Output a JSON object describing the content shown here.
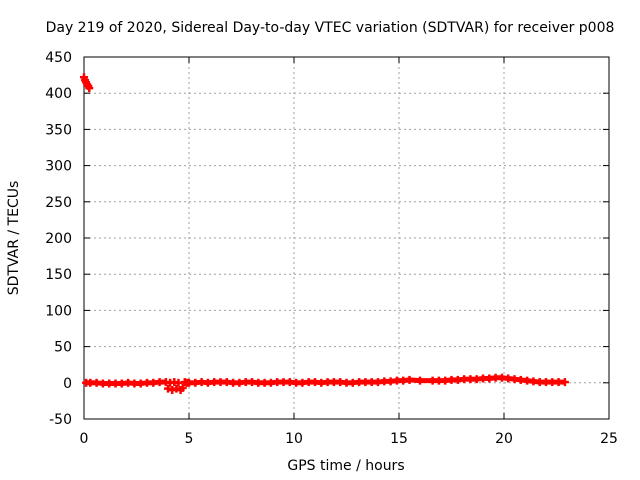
{
  "chart_data": {
    "type": "scatter",
    "title": "Day 219 of 2020, Sidereal Day-to-day VTEC variation (SDTVAR) for receiver p008",
    "xlabel": "GPS time / hours",
    "ylabel": "SDTVAR / TECUs",
    "xlim": [
      0,
      25
    ],
    "ylim": [
      -50,
      450
    ],
    "x_ticks": [
      0,
      5,
      10,
      15,
      20,
      25
    ],
    "y_ticks": [
      -50,
      0,
      50,
      100,
      150,
      200,
      250,
      300,
      350,
      400,
      450
    ],
    "x_tick_labels": [
      "0",
      "5",
      "10",
      "15",
      "20",
      "25"
    ],
    "y_tick_labels": [
      "-50",
      "0",
      "50",
      "100",
      "150",
      "200",
      "250",
      "300",
      "350",
      "400",
      "450"
    ],
    "grid": true,
    "series": [
      {
        "name": "SDTVAR",
        "color": "#ff0000",
        "marker": "plus",
        "x": [
          0.0,
          0.05,
          0.1,
          0.15,
          0.2,
          0.25,
          0.1,
          0.3,
          0.6,
          0.9,
          1.2,
          1.5,
          1.8,
          2.1,
          2.4,
          2.7,
          3.0,
          3.3,
          3.6,
          3.9,
          4.0,
          4.1,
          4.2,
          4.3,
          4.4,
          4.5,
          4.6,
          4.7,
          4.8,
          4.9,
          5.0,
          5.3,
          5.6,
          5.9,
          6.2,
          6.5,
          6.8,
          7.1,
          7.4,
          7.7,
          8.0,
          8.3,
          8.6,
          8.9,
          9.2,
          9.5,
          9.8,
          10.1,
          10.4,
          10.7,
          11.0,
          11.3,
          11.6,
          11.9,
          12.2,
          12.5,
          12.8,
          13.1,
          13.4,
          13.7,
          14.0,
          14.3,
          14.6,
          14.9,
          15.2,
          15.5,
          16.0,
          16.6,
          16.9,
          17.2,
          17.5,
          17.8,
          18.1,
          18.4,
          18.7,
          19.0,
          19.3,
          19.6,
          19.9,
          20.2,
          20.5,
          20.8,
          21.1,
          21.4,
          21.7,
          22.0,
          22.3,
          22.6,
          22.9
        ],
        "y": [
          422,
          418,
          415,
          412,
          410,
          407,
          0,
          0,
          0,
          -1,
          -1,
          -1,
          -1,
          0,
          -1,
          -1,
          0,
          0,
          1,
          1,
          -8,
          0,
          -10,
          1,
          -8,
          0,
          -10,
          -7,
          1,
          0,
          0,
          0,
          1,
          0,
          1,
          1,
          1,
          0,
          0,
          1,
          1,
          0,
          0,
          0,
          1,
          1,
          1,
          0,
          0,
          1,
          1,
          0,
          1,
          1,
          1,
          0,
          0,
          1,
          1,
          1,
          1,
          2,
          2,
          3,
          3,
          4,
          3,
          3,
          3,
          3,
          4,
          4,
          5,
          5,
          5,
          6,
          6,
          7,
          7,
          6,
          5,
          4,
          3,
          2,
          1,
          1,
          1,
          1,
          1
        ]
      }
    ]
  }
}
